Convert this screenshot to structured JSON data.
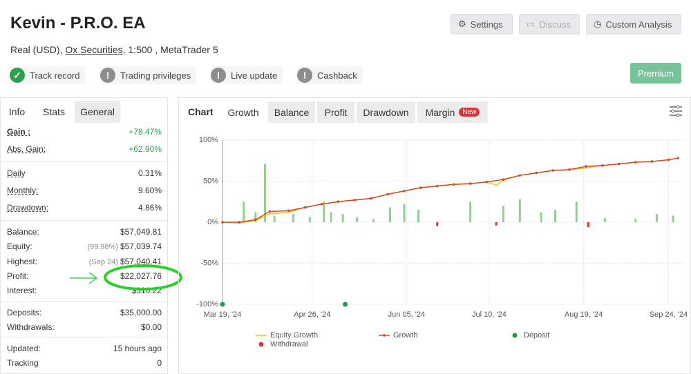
{
  "header": {
    "title": "Kevin - P.R.O. EA",
    "account": "Real (USD),",
    "broker": "Ox Securities",
    "details": ", 1:500 , MetaTrader 5",
    "buttons": [
      "Settings",
      "Discuss",
      "Custom Analysis"
    ],
    "badges": [
      "Track record",
      "Trading privileges",
      "Live update",
      "Cashback"
    ],
    "premium": "Premium"
  },
  "sidebar": {
    "tabs": [
      "Info",
      "Stats",
      "General"
    ],
    "groups": [
      [
        {
          "label": "Gain :",
          "value": "+78.47%"
        },
        {
          "label": "Abs. Gain:",
          "value": "+62.90%"
        }
      ],
      [
        {
          "label": "Daily",
          "value": "0.31%"
        },
        {
          "label": "Monthly:",
          "value": "9.60%"
        },
        {
          "label": "Drawdown:",
          "value": "4.86%"
        }
      ],
      [
        {
          "label": "Balance:",
          "value": "$57,049.81"
        },
        {
          "label": "Equity:",
          "note": "(99.98%)",
          "value": "$57,039.74"
        },
        {
          "label": "Highest:",
          "note": "(Sep 24)",
          "value": "$57,040.41"
        },
        {
          "label": "Profit:",
          "value": "$22,027.76"
        },
        {
          "label": "Interest:",
          "value": "$310.22"
        }
      ],
      [
        {
          "label": "Deposits:",
          "value": "$35,000.00"
        },
        {
          "label": "Withdrawals:",
          "value": "$0.00"
        }
      ],
      [
        {
          "label": "Updated:",
          "value": "15 hours ago"
        },
        {
          "label": "Tracking",
          "value": "0"
        }
      ]
    ]
  },
  "chart_tabs": {
    "heading": "Chart",
    "tabs": [
      "Growth",
      "Balance",
      "Profit",
      "Drawdown",
      "Margin"
    ],
    "new_badge": "New"
  },
  "chart_data": {
    "type": "line",
    "ylim": [
      -100,
      100
    ],
    "yticks": [
      {
        "value": -100,
        "label": "-100%"
      },
      {
        "value": -50,
        "label": "-50%"
      },
      {
        "value": 0,
        "label": "0%"
      },
      {
        "value": 50,
        "label": "50%"
      },
      {
        "value": 100,
        "label": "100%"
      }
    ],
    "xlim": [
      "Mar 19, '24",
      "Sep 30, '24"
    ],
    "xticks": [
      "Mar 19, '24",
      "Apr 26, '24",
      "Jun 05, '24",
      "Jul 10, '24",
      "Aug 19, '24",
      "Sep 24, '24"
    ],
    "grid": true,
    "series": [
      {
        "name": "Equity Growth",
        "color": "#e8c21a",
        "x": [
          "Mar 19, '24",
          "Mar 26, '24",
          "Apr 02, '24",
          "Apr 08, '24",
          "Apr 16, '24",
          "Apr 23, '24",
          "Apr 30, '24",
          "May 07, '24",
          "May 14, '24",
          "May 21, '24",
          "May 28, '24",
          "Jun 04, '24",
          "Jun 11, '24",
          "Jun 18, '24",
          "Jun 25, '24",
          "Jul 02, '24",
          "Jul 09, '24",
          "Jul 13, '24",
          "Jul 16, '24",
          "Jul 23, '24",
          "Jul 30, '24",
          "Aug 06, '24",
          "Aug 13, '24",
          "Aug 20, '24",
          "Aug 27, '24",
          "Sep 03, '24",
          "Sep 10, '24",
          "Sep 17, '24",
          "Sep 24, '24",
          "Sep 28, '24"
        ],
        "values": [
          0,
          -1,
          2,
          10,
          12,
          18,
          22,
          25,
          27,
          29,
          34,
          38,
          42,
          44,
          46,
          47,
          49,
          45,
          51,
          57,
          60,
          63,
          64,
          66,
          69,
          71,
          73,
          74,
          76,
          78
        ]
      },
      {
        "name": "Growth",
        "color": "#d2492a",
        "x": [
          "Mar 19, '24",
          "Mar 26, '24",
          "Apr 02, '24",
          "Apr 08, '24",
          "Apr 16, '24",
          "Apr 23, '24",
          "Apr 30, '24",
          "May 07, '24",
          "May 14, '24",
          "May 21, '24",
          "May 28, '24",
          "Jun 04, '24",
          "Jun 11, '24",
          "Jun 18, '24",
          "Jun 25, '24",
          "Jul 02, '24",
          "Jul 09, '24",
          "Jul 16, '24",
          "Jul 23, '24",
          "Jul 30, '24",
          "Aug 06, '24",
          "Aug 13, '24",
          "Aug 20, '24",
          "Aug 27, '24",
          "Sep 03, '24",
          "Sep 10, '24",
          "Sep 17, '24",
          "Sep 24, '24",
          "Sep 28, '24"
        ],
        "values": [
          0,
          0,
          3,
          13,
          14,
          18,
          22,
          25,
          27,
          29,
          34,
          38,
          42,
          44,
          46,
          47,
          49,
          52,
          57,
          60,
          63,
          64,
          68,
          69,
          71,
          73,
          74,
          76,
          78
        ]
      },
      {
        "name": "Deposit",
        "color": "#1e9a48",
        "x": [
          "Mar 19, '24",
          "May 10, '24"
        ],
        "values": [
          -100,
          -100
        ]
      },
      {
        "name": "Withdrawal",
        "color": "#d9343a",
        "x": [],
        "values": []
      }
    ],
    "bars": {
      "positive_color": "#8fd18a",
      "negative_color": "#d9343a",
      "x": [
        "Mar 28, '24",
        "Apr 02, '24",
        "Apr 06, '24",
        "Apr 10, '24",
        "Apr 18, '24",
        "Apr 25, '24",
        "May 01, '24",
        "May 04, '24",
        "May 09, '24",
        "May 15, '24",
        "May 22, '24",
        "May 29, '24",
        "Jun 04, '24",
        "Jun 10, '24",
        "Jun 18, '24",
        "Jul 02, '24",
        "Jul 13, '24",
        "Jul 16, '24",
        "Jul 23, '24",
        "Aug 01, '24",
        "Aug 07, '24",
        "Aug 16, '24",
        "Aug 21, '24",
        "Aug 28, '24",
        "Sep 10, '24",
        "Sep 19, '24",
        "Sep 26, '24"
      ],
      "values": [
        25,
        12,
        71,
        8,
        10,
        6,
        25,
        12,
        10,
        6,
        4,
        18,
        22,
        15,
        -5,
        25,
        -4,
        20,
        28,
        12,
        15,
        25,
        -6,
        5,
        4,
        10,
        8
      ]
    }
  }
}
